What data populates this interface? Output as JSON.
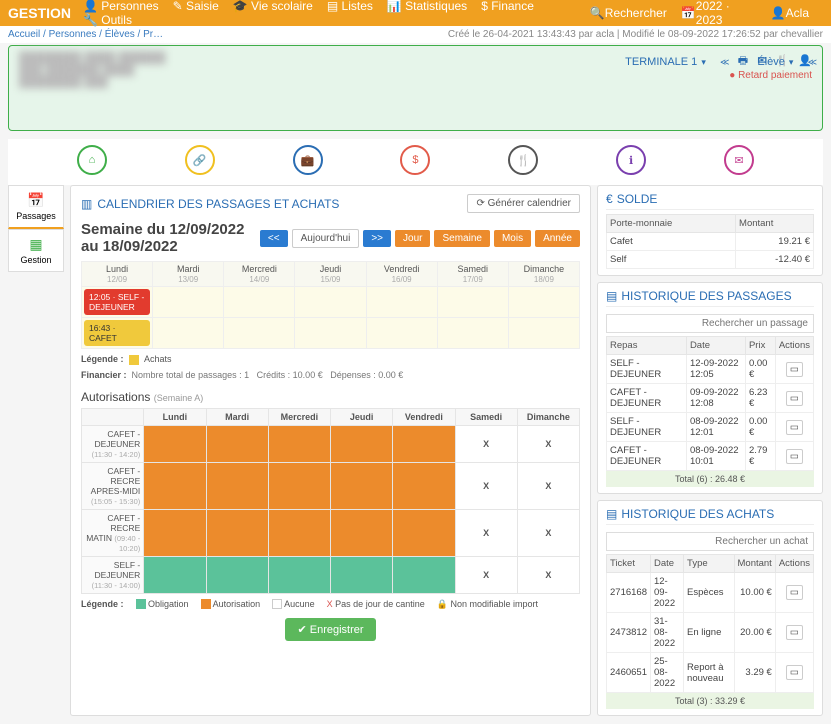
{
  "topnav": {
    "brand": "GESTION",
    "items": [
      "Personnes",
      "Saisie",
      "Vie scolaire",
      "Listes",
      "Statistiques",
      "Finance",
      "Outils"
    ],
    "right": {
      "search": "Rechercher",
      "year": "2022 · 2023",
      "user": "Acla"
    }
  },
  "breadcrumb": [
    "Accueil",
    "Personnes",
    "Élèves",
    "Pr…"
  ],
  "meta": "Créé le 26-04-2021 13:43:43 par acla | Modifié le 08-09-2022 17:26:52 par chevallier",
  "card": {
    "retard": "Retard paiement"
  },
  "dropdowns": {
    "class": "TERMINALE 1",
    "role": "Élève"
  },
  "circles": [
    {
      "name": "home-icon",
      "color": "#3fae49"
    },
    {
      "name": "link-icon",
      "color": "#f0c020"
    },
    {
      "name": "briefcase-icon",
      "color": "#2a6db3"
    },
    {
      "name": "dollar-icon",
      "color": "#e25b4a"
    },
    {
      "name": "cutlery-icon",
      "color": "#555555"
    },
    {
      "name": "info-icon",
      "color": "#7a3fae"
    },
    {
      "name": "mail-icon",
      "color": "#c23b8e"
    }
  ],
  "lefttabs": [
    {
      "icon": "📅",
      "label": "Passages",
      "active": true,
      "color": "#c77b2b"
    },
    {
      "icon": "▦",
      "label": "Gestion",
      "active": false,
      "color": "#3fae49"
    }
  ],
  "calendar": {
    "title": "CALENDRIER DES PASSAGES ET ACHATS",
    "generate": "Générer calendrier",
    "week_title": "Semaine du 12/09/2022 au 18/09/2022",
    "nav": {
      "prev": "<<",
      "today": "Aujourd'hui",
      "next": ">>",
      "jour": "Jour",
      "semaine": "Semaine",
      "mois": "Mois",
      "annee": "Année"
    },
    "days": [
      {
        "name": "Lundi",
        "date": "12/09"
      },
      {
        "name": "Mardi",
        "date": "13/09"
      },
      {
        "name": "Mercredi",
        "date": "14/09"
      },
      {
        "name": "Jeudi",
        "date": "15/09"
      },
      {
        "name": "Vendredi",
        "date": "16/09"
      },
      {
        "name": "Samedi",
        "date": "17/09"
      },
      {
        "name": "Dimanche",
        "date": "18/09"
      }
    ],
    "chips": [
      {
        "row": 0,
        "col": 0,
        "text": "12:05 · SELF - DEJEUNER",
        "cls": "red"
      },
      {
        "row": 1,
        "col": 0,
        "text": "16:43 · CAFET",
        "cls": "yel"
      }
    ],
    "legend": {
      "label": "Légende :",
      "achats": "Achats",
      "swatch": "#f0c93c"
    },
    "fin": {
      "label": "Financier :",
      "passages_lbl": "Nombre total de passages :",
      "passages": "1",
      "credits_lbl": "Crédits :",
      "credits": "10.00 €",
      "dep_lbl": "Dépenses :",
      "dep": "0.00 €"
    }
  },
  "auth": {
    "title": "Autorisations",
    "subtitle": "(Semaine A)",
    "cols": [
      "Lundi",
      "Mardi",
      "Mercredi",
      "Jeudi",
      "Vendredi",
      "Samedi",
      "Dimanche"
    ],
    "rows": [
      {
        "label": "CAFET - DEJEUNER",
        "time": "(11:30 - 14:20)",
        "cells": [
          "o",
          "o",
          "o",
          "o",
          "o",
          "x",
          "x"
        ]
      },
      {
        "label": "CAFET - RECRE APRES-MIDI",
        "time": "(15:05 - 15:30)",
        "cells": [
          "o",
          "o",
          "o",
          "o",
          "o",
          "x",
          "x"
        ]
      },
      {
        "label": "CAFET - RECRE MATIN",
        "time": "(09:40 - 10:20)",
        "cells": [
          "o",
          "o",
          "o",
          "o",
          "o",
          "x",
          "x"
        ]
      },
      {
        "label": "SELF - DEJEUNER",
        "time": "(11:30 - 14:00)",
        "cells": [
          "g",
          "g",
          "g",
          "g",
          "g",
          "x",
          "x"
        ]
      }
    ],
    "legend": {
      "label": "Légende :",
      "oblig": {
        "sw": "#5bc29a",
        "txt": "Obligation"
      },
      "auth": {
        "sw": "#ec8b2c",
        "txt": "Autorisation"
      },
      "none": {
        "sw": "#ffffff",
        "txt": "Aucune"
      },
      "x": {
        "txt": "Pas de jour de cantine"
      },
      "lock": {
        "txt": "Non modifiable import"
      }
    },
    "save": "Enregistrer"
  },
  "solde": {
    "title": "SOLDE",
    "cols": [
      "Porte-monnaie",
      "Montant"
    ],
    "rows": [
      {
        "name": "Cafet",
        "amount": "19.21 €",
        "cls": "pos"
      },
      {
        "name": "Self",
        "amount": "-12.40 €",
        "cls": "neg"
      }
    ]
  },
  "hist_pass": {
    "title": "HISTORIQUE DES PASSAGES",
    "search": "Rechercher un passage",
    "cols": [
      "Repas",
      "Date",
      "Prix",
      "Actions"
    ],
    "rows": [
      {
        "r": "SELF - DEJEUNER",
        "d": "12-09-2022 12:05",
        "p": "0.00 €"
      },
      {
        "r": "CAFET - DEJEUNER",
        "d": "09-09-2022 12:08",
        "p": "6.23 €"
      },
      {
        "r": "SELF - DEJEUNER",
        "d": "08-09-2022 12:01",
        "p": "0.00 €"
      },
      {
        "r": "CAFET - DEJEUNER",
        "d": "08-09-2022 10:01",
        "p": "2.79 €"
      }
    ],
    "total": "Total (6) : 26.48 €"
  },
  "hist_ach": {
    "title": "HISTORIQUE DES ACHATS",
    "search": "Rechercher un achat",
    "cols": [
      "Ticket",
      "Date",
      "Type",
      "Montant",
      "Actions"
    ],
    "rows": [
      {
        "t": "2716168",
        "d": "12-09-2022",
        "ty": "Espèces",
        "m": "10.00 €"
      },
      {
        "t": "2473812",
        "d": "31-08-2022",
        "ty": "En ligne",
        "m": "20.00 €"
      },
      {
        "t": "2460651",
        "d": "25-08-2022",
        "ty": "Report à nouveau",
        "m": "3.29 €"
      }
    ],
    "total": "Total (3) : 33.29 €"
  }
}
